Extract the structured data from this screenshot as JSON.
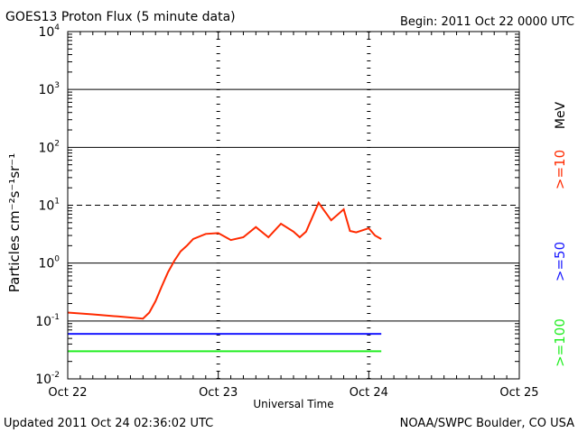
{
  "header": {
    "title": "GOES13 Proton Flux (5 minute data)",
    "begin": "Begin: 2011 Oct 22 0000 UTC"
  },
  "footer": {
    "updated": "Updated 2011 Oct 24 02:36:02 UTC",
    "source": "NOAA/SWPC Boulder, CO USA"
  },
  "chart_data": {
    "type": "line",
    "title": "GOES13 Proton Flux (5 minute data)",
    "xlabel": "Universal Time",
    "ylabel": "Particles cm⁻²s⁻¹sr⁻¹",
    "y_scale": "log",
    "ylim": [
      0.01,
      10000
    ],
    "xlim": [
      "2011-10-22 00:00",
      "2011-10-25 00:00"
    ],
    "x_ticks": [
      "Oct 22",
      "Oct 23",
      "Oct 24",
      "Oct 25"
    ],
    "y_ticks": [
      {
        "base": "10",
        "exp": "-2"
      },
      {
        "base": "10",
        "exp": "-1"
      },
      {
        "base": "10",
        "exp": "0"
      },
      {
        "base": "10",
        "exp": "1"
      },
      {
        "base": "10",
        "exp": "2"
      },
      {
        "base": "10",
        "exp": "3"
      },
      {
        "base": "10",
        "exp": "4"
      }
    ],
    "grid": true,
    "threshold_line": {
      "value": 10,
      "style": "dashed"
    },
    "legend": {
      "placement": "right",
      "unit": "MeV"
    },
    "series": [
      {
        "name": ">=10",
        "color": "#ff2a00",
        "x": [
          "2011-10-22 00:00",
          "2011-10-22 04:00",
          "2011-10-22 08:00",
          "2011-10-22 12:00",
          "2011-10-22 13:00",
          "2011-10-22 14:00",
          "2011-10-22 15:00",
          "2011-10-22 16:00",
          "2011-10-22 17:00",
          "2011-10-22 18:00",
          "2011-10-22 19:00",
          "2011-10-22 20:00",
          "2011-10-22 22:00",
          "2011-10-23 00:00",
          "2011-10-23 02:00",
          "2011-10-23 04:00",
          "2011-10-23 06:00",
          "2011-10-23 08:00",
          "2011-10-23 10:00",
          "2011-10-23 12:00",
          "2011-10-23 13:00",
          "2011-10-23 14:00",
          "2011-10-23 16:00",
          "2011-10-23 18:00",
          "2011-10-23 20:00",
          "2011-10-23 21:00",
          "2011-10-23 22:00",
          "2011-10-24 00:00",
          "2011-10-24 01:00",
          "2011-10-24 02:00"
        ],
        "values": [
          0.14,
          0.13,
          0.12,
          0.11,
          0.14,
          0.22,
          0.4,
          0.7,
          1.1,
          1.6,
          2.0,
          2.6,
          3.2,
          3.3,
          2.5,
          2.8,
          4.2,
          2.8,
          4.8,
          3.5,
          2.8,
          3.5,
          11.0,
          5.5,
          8.5,
          3.6,
          3.4,
          4.0,
          3.0,
          2.6
        ]
      },
      {
        "name": ">=50",
        "color": "#1a1aff",
        "x": [
          "2011-10-22 00:00",
          "2011-10-22 12:00",
          "2011-10-23 00:00",
          "2011-10-23 12:00",
          "2011-10-24 00:00",
          "2011-10-24 02:00"
        ],
        "values": [
          0.06,
          0.06,
          0.06,
          0.06,
          0.06,
          0.06
        ]
      },
      {
        "name": ">=100",
        "color": "#22ee22",
        "x": [
          "2011-10-22 00:00",
          "2011-10-22 12:00",
          "2011-10-23 00:00",
          "2011-10-23 12:00",
          "2011-10-24 00:00",
          "2011-10-24 02:00"
        ],
        "values": [
          0.03,
          0.03,
          0.03,
          0.03,
          0.03,
          0.03
        ]
      }
    ]
  }
}
